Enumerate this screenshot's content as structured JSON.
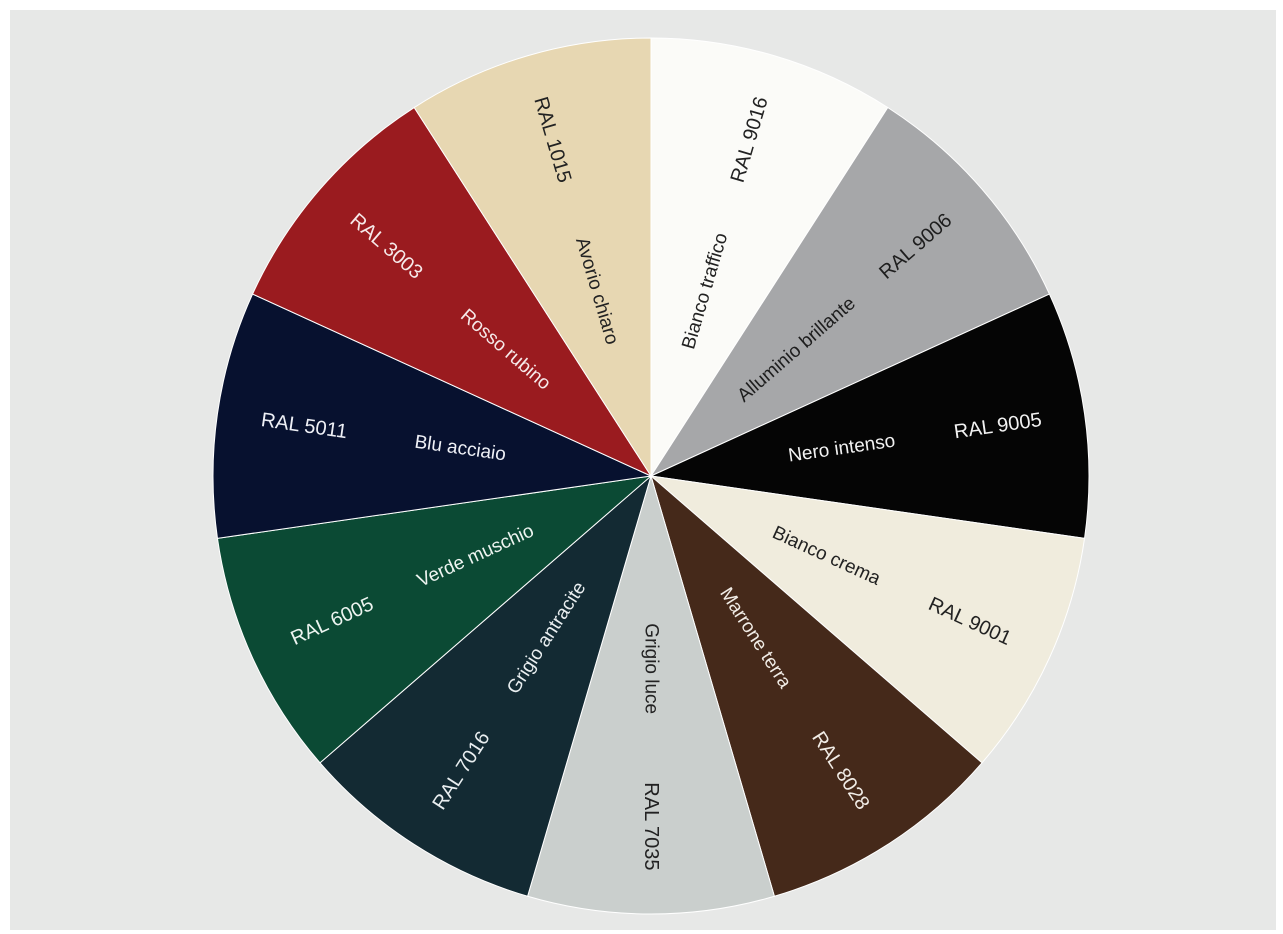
{
  "colors": {
    "panel_background": "#e7e8e7",
    "segment_border": "#ffffff"
  },
  "segments": [
    {
      "name": "Bianco traffico",
      "code": "RAL 9016",
      "fill": "#fbfbf8",
      "text": "#222222"
    },
    {
      "name": "Alluminio brillante",
      "code": "RAL 9006",
      "fill": "#a6a7a9",
      "text": "#1e1e1e"
    },
    {
      "name": "Nero intenso",
      "code": "RAL 9005",
      "fill": "#050505",
      "text": "#f2f2f2"
    },
    {
      "name": "Bianco crema",
      "code": "RAL 9001",
      "fill": "#f0ecdd",
      "text": "#222222"
    },
    {
      "name": "Marrone terra",
      "code": "RAL 8028",
      "fill": "#45291a",
      "text": "#f1ece6"
    },
    {
      "name": "Grigio luce",
      "code": "RAL 7035",
      "fill": "#cacfcd",
      "text": "#222222"
    },
    {
      "name": "Grigio antracite",
      "code": "RAL 7016",
      "fill": "#132a33",
      "text": "#e9eef0"
    },
    {
      "name": "Verde muschio",
      "code": "RAL 6005",
      "fill": "#0b4a34",
      "text": "#edf4f0"
    },
    {
      "name": "Blu acciaio",
      "code": "RAL 5011",
      "fill": "#07112f",
      "text": "#eef0f6"
    },
    {
      "name": "Rosso rubino",
      "code": "RAL 3003",
      "fill": "#9a1b1f",
      "text": "#f6e9e9"
    },
    {
      "name": "Avorio chiaro",
      "code": "RAL 1015",
      "fill": "#e7d7b2",
      "text": "#222222"
    }
  ]
}
